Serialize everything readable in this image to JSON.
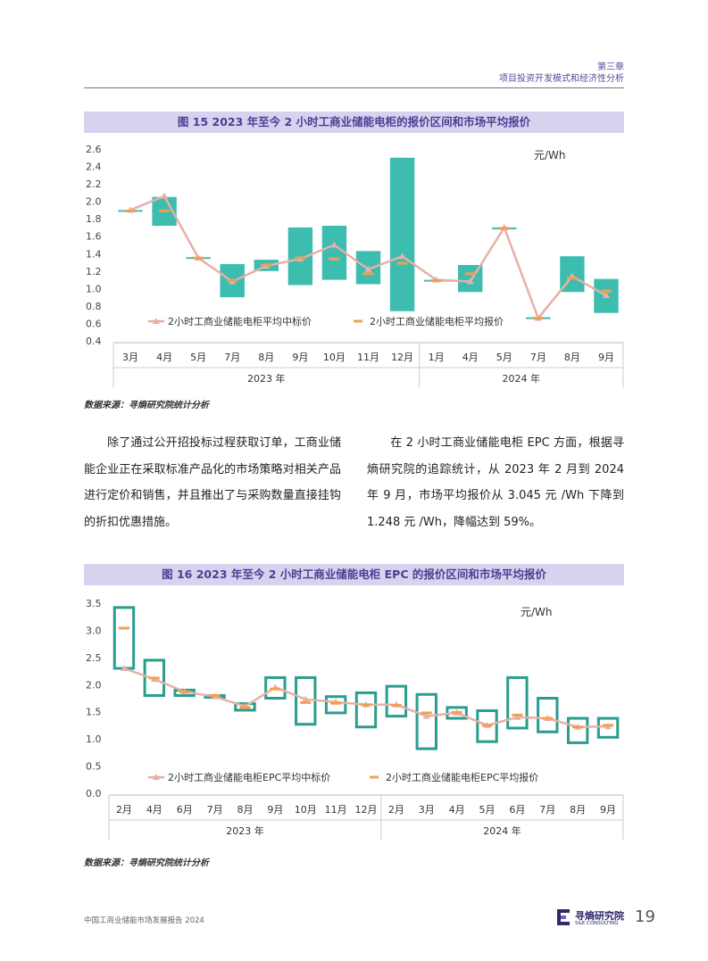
{
  "header": {
    "chapter": "第三章",
    "subtitle": "项目投资开发模式和经济性分析"
  },
  "fig15": {
    "title": "图 15 2023 年至今 2 小时工商业储能电柜的报价区间和市场平均报价",
    "source": "数据来源：寻熵研究院统计分析"
  },
  "fig16": {
    "title": "图 16 2023 年至今 2 小时工商业储能电柜 EPC 的报价区间和市场平均报价",
    "source": "数据来源：寻熵研究院统计分析"
  },
  "paragraphs": {
    "left": "除了通过公开招投标过程获取订单，工商业储能企业正在采取标准产品化的市场策略对相关产品进行定价和销售，并且推出了与采购数量直接挂钩的折扣优惠措施。",
    "right": "在 2 小时工商业储能电柜 EPC 方面，根据寻熵研究院的追踪统计，从 2023 年 2 月到 2024 年 9 月，市场平均报价从 3.045 元 /Wh 下降到 1.248 元 /Wh，降幅达到 59%。"
  },
  "footer": {
    "report": "中国工商业储能市场发展报告 2024",
    "logo_cn": "寻熵研究院",
    "logo_en": "S&E CONSULTING",
    "page": "19"
  },
  "colors": {
    "range_fill": "#3dbdb0",
    "range_stroke": "#2a9d8f",
    "median": "#e6b0a8",
    "avg": "#f0a050",
    "title_bg": "#d7d3ee"
  },
  "chart_data": [
    {
      "type": "bar",
      "title": "图 15 2023 年至今 2 小时工商业储能电柜的报价区间和市场平均报价",
      "unit": "元/Wh",
      "ylim": [
        0.4,
        2.6
      ],
      "yticks": [
        "0.4",
        "0.6",
        "0.8",
        "1.0",
        "1.2",
        "1.4",
        "1.6",
        "1.8",
        "2.0",
        "2.2",
        "2.4",
        "2.6"
      ],
      "categories": [
        "3月",
        "4月",
        "5月",
        "7月",
        "8月",
        "9月",
        "10月",
        "11月",
        "12月",
        "1月",
        "4月",
        "5月",
        "7月",
        "8月",
        "9月"
      ],
      "year_groups": [
        {
          "label": "2023 年",
          "count": 9
        },
        {
          "label": "2024 年",
          "count": 6
        }
      ],
      "range_style": "filled",
      "series": [
        {
          "name": "报价区间",
          "low": [
            1.88,
            1.72,
            1.34,
            0.9,
            1.2,
            1.04,
            1.1,
            1.05,
            0.74,
            1.09,
            0.96,
            1.69,
            0.66,
            0.96,
            0.72
          ],
          "high": [
            1.9,
            2.05,
            1.36,
            1.28,
            1.33,
            1.7,
            1.72,
            1.43,
            2.5,
            1.1,
            1.27,
            1.7,
            0.67,
            1.37,
            1.11
          ]
        },
        {
          "name": "2小时工商业储能电柜平均中标价",
          "values": [
            1.9,
            2.06,
            1.35,
            1.08,
            1.26,
            1.34,
            1.5,
            1.22,
            1.37,
            1.1,
            1.08,
            1.7,
            0.66,
            1.14,
            0.92
          ]
        },
        {
          "name": "2小时工商业储能电柜平均报价",
          "values": [
            1.89,
            1.89,
            1.35,
            1.09,
            1.27,
            1.35,
            1.34,
            1.17,
            1.29,
            1.09,
            1.17,
            1.69,
            0.66,
            1.12,
            0.97
          ]
        }
      ]
    },
    {
      "type": "bar",
      "title": "图 16 2023 年至今 2 小时工商业储能电柜 EPC 的报价区间和市场平均报价",
      "unit": "元/Wh",
      "ylim": [
        0.0,
        3.5
      ],
      "yticks": [
        "0.0",
        "0.5",
        "1.0",
        "1.5",
        "2.0",
        "2.5",
        "3.0",
        "3.5"
      ],
      "categories": [
        "2月",
        "4月",
        "6月",
        "7月",
        "8月",
        "9月",
        "10月",
        "11月",
        "12月",
        "2月",
        "3月",
        "4月",
        "5月",
        "6月",
        "7月",
        "8月",
        "9月"
      ],
      "year_groups": [
        {
          "label": "2023 年",
          "count": 9
        },
        {
          "label": "2024 年",
          "count": 8
        }
      ],
      "range_style": "outline",
      "series": [
        {
          "name": "报价区间",
          "low": [
            2.3,
            1.8,
            1.8,
            1.78,
            1.53,
            1.75,
            1.27,
            1.48,
            1.22,
            1.42,
            0.82,
            1.38,
            0.95,
            1.2,
            1.13,
            0.93,
            1.03
          ],
          "high": [
            3.42,
            2.45,
            1.9,
            1.8,
            1.65,
            2.13,
            2.13,
            1.78,
            1.85,
            1.97,
            1.82,
            1.58,
            1.52,
            2.13,
            1.75,
            1.38,
            1.38
          ]
        },
        {
          "name": "2小时工商业储能电柜EPC平均中标价",
          "values": [
            2.3,
            2.1,
            1.87,
            1.78,
            1.6,
            1.95,
            1.73,
            1.68,
            1.63,
            1.63,
            1.42,
            1.48,
            1.25,
            1.4,
            1.38,
            1.22,
            1.23
          ]
        },
        {
          "name": "2小时工商业储能电柜EPC平均报价",
          "values": [
            3.04,
            2.12,
            1.87,
            1.8,
            1.58,
            1.92,
            1.67,
            1.66,
            1.63,
            1.62,
            1.48,
            1.49,
            1.25,
            1.44,
            1.38,
            1.22,
            1.25
          ]
        }
      ]
    }
  ]
}
